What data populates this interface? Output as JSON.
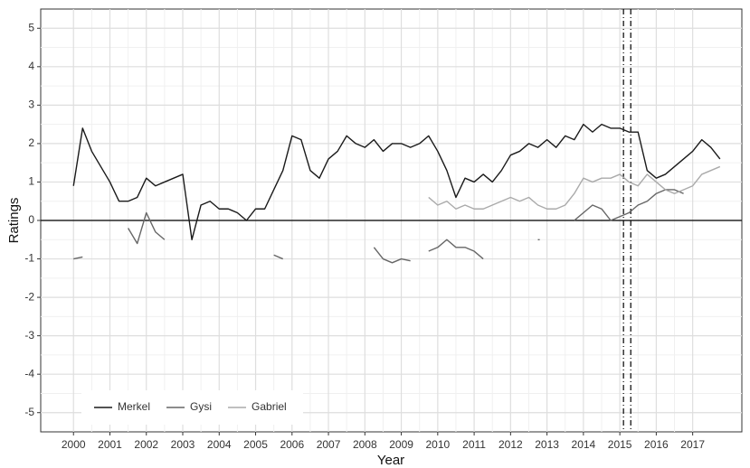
{
  "chart_data": {
    "type": "line",
    "x_label": "Year",
    "y_label": "Ratings",
    "x": [
      2000,
      2000.25,
      2000.5,
      2000.75,
      2001,
      2001.25,
      2001.5,
      2001.75,
      2002,
      2002.25,
      2002.5,
      2002.75,
      2003,
      2003.25,
      2003.5,
      2003.75,
      2004,
      2004.25,
      2004.5,
      2004.75,
      2005,
      2005.25,
      2005.5,
      2005.75,
      2006,
      2006.25,
      2006.5,
      2006.75,
      2007,
      2007.25,
      2007.5,
      2007.75,
      2008,
      2008.25,
      2008.5,
      2008.75,
      2009,
      2009.25,
      2009.5,
      2009.75,
      2010,
      2010.25,
      2010.5,
      2010.75,
      2011,
      2011.25,
      2011.5,
      2011.75,
      2012,
      2012.25,
      2012.5,
      2012.75,
      2013,
      2013.25,
      2013.5,
      2013.75,
      2014,
      2014.25,
      2014.5,
      2014.75,
      2015,
      2015.25,
      2015.5,
      2015.75,
      2016,
      2016.25,
      2016.5,
      2016.75,
      2017,
      2017.25,
      2017.5,
      2017.75
    ],
    "series": [
      {
        "name": "Merkel",
        "color": "#1a1a1a",
        "values": [
          0.9,
          2.4,
          1.8,
          1.4,
          1.0,
          0.5,
          0.5,
          0.6,
          1.1,
          0.9,
          1.0,
          1.1,
          1.2,
          -0.5,
          0.4,
          0.5,
          0.3,
          0.3,
          0.2,
          0.0,
          0.3,
          0.3,
          0.8,
          1.3,
          2.2,
          2.1,
          1.3,
          1.1,
          1.6,
          1.8,
          2.2,
          2.0,
          1.9,
          2.1,
          1.8,
          2.0,
          2.0,
          1.9,
          2.0,
          2.2,
          1.8,
          1.3,
          0.6,
          1.1,
          1.0,
          1.2,
          1.0,
          1.3,
          1.7,
          1.8,
          2.0,
          1.9,
          2.1,
          1.9,
          2.2,
          2.1,
          2.5,
          2.3,
          2.5,
          2.4,
          2.4,
          2.3,
          2.3,
          1.3,
          1.1,
          1.2,
          1.4,
          1.6,
          1.8,
          2.1,
          1.9,
          1.6
        ]
      },
      {
        "name": "Gysi",
        "color": "#666666",
        "values": [
          -1.0,
          -0.95,
          null,
          null,
          null,
          null,
          -0.2,
          -0.6,
          0.2,
          -0.3,
          -0.5,
          null,
          null,
          null,
          null,
          null,
          null,
          null,
          null,
          null,
          null,
          null,
          -0.9,
          -1.0,
          null,
          null,
          null,
          null,
          null,
          null,
          null,
          null,
          null,
          -0.7,
          -1.0,
          -1.1,
          -1.0,
          -1.05,
          null,
          -0.8,
          -0.7,
          -0.5,
          -0.7,
          -0.7,
          -0.8,
          -1.0,
          null,
          null,
          null,
          null,
          null,
          -0.5,
          null,
          null,
          null,
          0.0,
          0.2,
          0.4,
          0.3,
          0.0,
          0.1,
          0.2,
          0.4,
          0.5,
          0.7,
          0.8,
          0.8,
          0.7,
          null,
          null,
          null,
          null
        ]
      },
      {
        "name": "Gabriel",
        "color": "#aaaaaa",
        "values": [
          null,
          null,
          null,
          null,
          null,
          null,
          null,
          null,
          null,
          null,
          null,
          null,
          null,
          null,
          null,
          null,
          null,
          null,
          null,
          null,
          null,
          null,
          null,
          null,
          null,
          null,
          null,
          null,
          null,
          null,
          null,
          null,
          null,
          null,
          null,
          null,
          null,
          null,
          null,
          0.6,
          0.4,
          0.5,
          0.3,
          0.4,
          0.3,
          0.3,
          0.4,
          0.5,
          0.6,
          0.5,
          0.6,
          0.4,
          0.3,
          0.3,
          0.4,
          0.7,
          1.1,
          1.0,
          1.1,
          1.1,
          1.2,
          1.0,
          0.9,
          1.2,
          1.0,
          0.8,
          0.7,
          0.8,
          0.9,
          1.2,
          1.3,
          1.4
        ]
      }
    ],
    "xlim": [
      1999.1,
      2018.35
    ],
    "ylim": [
      -5.5,
      5.5
    ],
    "xticks": [
      2000,
      2001,
      2002,
      2003,
      2004,
      2005,
      2006,
      2007,
      2008,
      2009,
      2010,
      2011,
      2012,
      2013,
      2014,
      2015,
      2016,
      2017
    ],
    "yticks": [
      -5,
      -4,
      -3,
      -2,
      -1,
      0,
      1,
      2,
      3,
      4,
      5
    ],
    "hline": 0,
    "vlines": [
      2015.1,
      2015.3
    ],
    "grid": true,
    "legend": "bottom-left"
  }
}
